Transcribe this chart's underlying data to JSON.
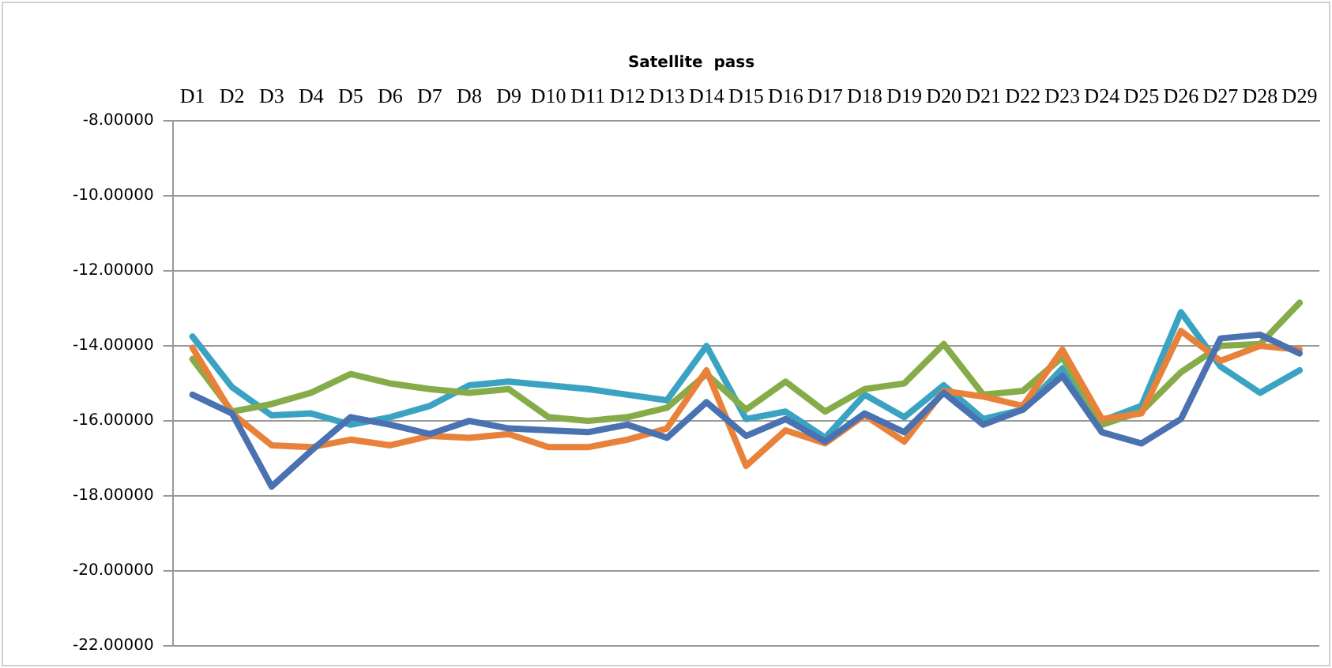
{
  "chart_data": {
    "type": "line",
    "title": "Satellite  pass",
    "categories": [
      "D1",
      "D2",
      "D3",
      "D4",
      "D5",
      "D6",
      "D7",
      "D8",
      "D9",
      "D10",
      "D11",
      "D12",
      "D13",
      "D14",
      "D15",
      "D16",
      "D17",
      "D18",
      "D19",
      "D20",
      "D21",
      "D22",
      "D23",
      "D24",
      "D25",
      "D26",
      "D27",
      "D28",
      "D29"
    ],
    "series": [
      {
        "color": "#4a72b0",
        "values": [
          -15.3,
          -15.8,
          -17.75,
          -16.8,
          -15.9,
          -16.1,
          -16.35,
          -16.0,
          -16.2,
          -16.25,
          -16.3,
          -16.1,
          -16.45,
          -15.5,
          -16.4,
          -15.95,
          -16.55,
          -15.8,
          -16.3,
          -15.25,
          -16.1,
          -15.7,
          -14.8,
          -16.3,
          -16.6,
          -15.95,
          -13.8,
          -13.7,
          -14.2
        ]
      },
      {
        "color": "#e8823a",
        "values": [
          -14.05,
          -15.8,
          -16.65,
          -16.7,
          -16.5,
          -16.65,
          -16.4,
          -16.45,
          -16.35,
          -16.7,
          -16.7,
          -16.5,
          -16.2,
          -14.65,
          -17.2,
          -16.25,
          -16.6,
          -15.85,
          -16.55,
          -15.2,
          -15.35,
          -15.6,
          -14.1,
          -15.95,
          -15.8,
          -13.6,
          -14.4,
          -14.0,
          -14.1
        ]
      },
      {
        "color": "#86ac4a",
        "values": [
          -14.35,
          -15.75,
          -15.55,
          -15.25,
          -14.75,
          -15.0,
          -15.15,
          -15.25,
          -15.15,
          -15.9,
          -16.0,
          -15.9,
          -15.65,
          -14.75,
          -15.7,
          -14.95,
          -15.75,
          -15.15,
          -15.0,
          -13.95,
          -15.3,
          -15.2,
          -14.3,
          -16.1,
          -15.75,
          -14.7,
          -14.0,
          -13.95,
          -12.85
        ]
      },
      {
        "color": "#3ba3c2",
        "values": [
          -13.75,
          -15.1,
          -15.85,
          -15.8,
          -16.1,
          -15.9,
          -15.6,
          -15.05,
          -14.95,
          -15.05,
          -15.15,
          -15.3,
          -15.45,
          -14.0,
          -15.95,
          -15.75,
          -16.45,
          -15.3,
          -15.9,
          -15.05,
          -15.95,
          -15.7,
          -14.6,
          -16.0,
          -15.6,
          -13.1,
          -14.55,
          -15.25,
          -14.65
        ]
      }
    ],
    "ylim": [
      -22,
      -8
    ],
    "yticks": [
      {
        "value": -22,
        "label": "-22.00000"
      },
      {
        "value": -20,
        "label": "-20.00000"
      },
      {
        "value": -18,
        "label": "-18.00000"
      },
      {
        "value": -16,
        "label": "-16.00000"
      },
      {
        "value": -14,
        "label": "-14.00000"
      },
      {
        "value": -12,
        "label": "-12.00000"
      },
      {
        "value": -10,
        "label": "-10.00000"
      },
      {
        "value": -8,
        "label": "-8.00000"
      }
    ],
    "grid": "y",
    "legend": false,
    "marker": "none",
    "line_style": "solid"
  }
}
